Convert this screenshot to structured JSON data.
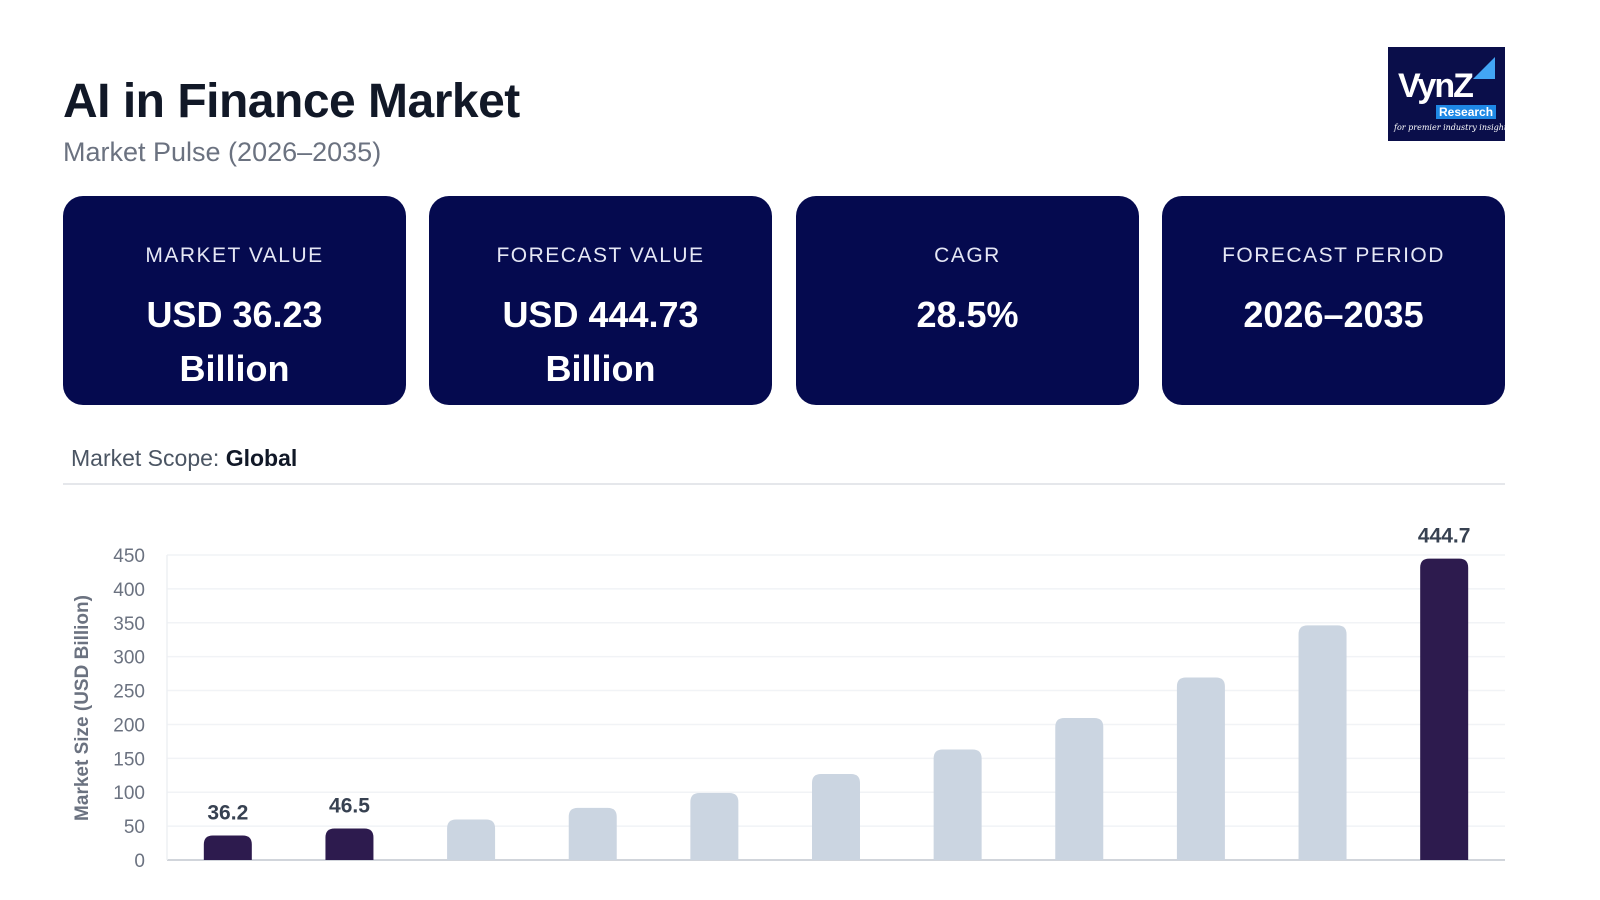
{
  "header": {
    "title": "AI in Finance Market",
    "subtitle": "Market Pulse (2026–2035)"
  },
  "logo": {
    "name": "VynZ",
    "sub": "Research",
    "tagline": "for premier industry insights"
  },
  "cards": [
    {
      "label": "MARKET VALUE",
      "value_line1": "USD 36.23",
      "value_line2": "Billion"
    },
    {
      "label": "FORECAST VALUE",
      "value_line1": "USD 444.73",
      "value_line2": "Billion"
    },
    {
      "label": "CAGR",
      "value_line1": "28.5%",
      "value_line2": ""
    },
    {
      "label": "FORECAST PERIOD",
      "value_line1": "2026–2035",
      "value_line2": ""
    }
  ],
  "scope": {
    "label": "Market Scope:",
    "value": "Global"
  },
  "colors": {
    "highlight": "#2d1b4e",
    "muted": "#cbd5e1",
    "card": "#050a4f"
  },
  "chart_data": {
    "type": "bar",
    "ylabel": "Market Size (USD Billion)",
    "ylim": [
      0,
      450
    ],
    "yticks": [
      0,
      50,
      100,
      150,
      200,
      250,
      300,
      350,
      400,
      450
    ],
    "grid": true,
    "values": [
      36.2,
      46.5,
      59.8,
      76.9,
      98.8,
      126.9,
      163.1,
      209.6,
      269.3,
      346.1,
      444.7
    ],
    "highlighted": [
      true,
      true,
      false,
      false,
      false,
      false,
      false,
      false,
      false,
      false,
      true
    ],
    "data_labels": [
      "36.2",
      "46.5",
      "",
      "",
      "",
      "",
      "",
      "",
      "",
      "",
      "444.7"
    ]
  }
}
